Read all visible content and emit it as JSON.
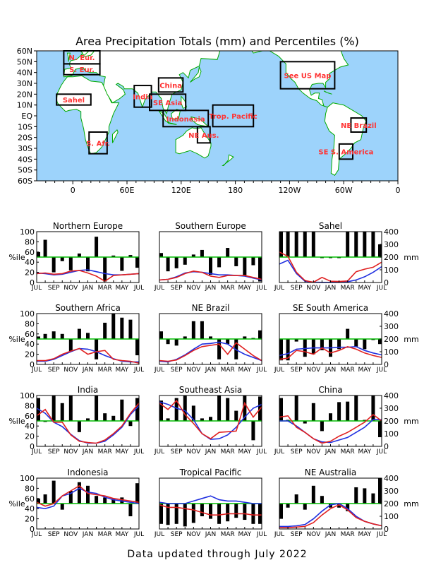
{
  "title": "Area Precipitation Totals (mm) and Percentiles (%)",
  "footer": "Data updated through July 2022",
  "colors": {
    "land": "#ffffff",
    "ocean": "#9dd3fb",
    "coast": "#00aa00",
    "box": "#000000",
    "region_label": "#ff3333",
    "percentile_bar": "#000000",
    "mm_line": "#e02020",
    "normal_line": "#2030e0",
    "fifty_line": "#00bb00"
  },
  "map": {
    "lat_labels": [
      "60N",
      "50N",
      "40N",
      "30N",
      "20N",
      "10N",
      "EQ",
      "10S",
      "20S",
      "30S",
      "40S",
      "50S",
      "60S"
    ],
    "lon_labels": [
      "0",
      "60E",
      "120E",
      "180",
      "120W",
      "60W",
      "0"
    ],
    "lon_values": [
      0,
      60,
      120,
      180,
      240,
      300,
      360
    ],
    "lon_range": [
      -40,
      360
    ],
    "lat_range": [
      -60,
      60
    ],
    "regions": [
      {
        "label": "N. Eur.",
        "lon": [
          -10,
          30
        ],
        "lat": [
          48,
          60
        ]
      },
      {
        "label": "S. Eur.",
        "lon": [
          -10,
          30
        ],
        "lat": [
          38,
          48
        ]
      },
      {
        "label": "Sahel",
        "lon": [
          -18,
          20
        ],
        "lat": [
          10,
          20
        ]
      },
      {
        "label": "S. Afr.",
        "lon": [
          18,
          38
        ],
        "lat": [
          -35,
          -15
        ]
      },
      {
        "label": "India",
        "lon": [
          68,
          87
        ],
        "lat": [
          8,
          28
        ]
      },
      {
        "label": "China",
        "lon": [
          95,
          122
        ],
        "lat": [
          22,
          35
        ]
      },
      {
        "label": "SE Asia",
        "lon": [
          85,
          125
        ],
        "lat": [
          5,
          20
        ]
      },
      {
        "label": "Indonesia",
        "lon": [
          100,
          150
        ],
        "lat": [
          -10,
          5
        ]
      },
      {
        "label": "Trop. Pacific",
        "lon": [
          155,
          200
        ],
        "lat": [
          -10,
          10
        ]
      },
      {
        "label": "NE Aus.",
        "lon": [
          138,
          152
        ],
        "lat": [
          -25,
          -10
        ]
      },
      {
        "label": "See US Map",
        "lon": [
          230,
          290
        ],
        "lat": [
          25,
          50
        ]
      },
      {
        "label": "NE Brazil",
        "lon": [
          308,
          325
        ],
        "lat": [
          -15,
          -2
        ]
      },
      {
        "label": "SE S. America",
        "lon": [
          295,
          310
        ],
        "lat": [
          -40,
          -26
        ]
      }
    ]
  },
  "panel_common": {
    "month_labels": [
      "JUL",
      "SEP",
      "NOV",
      "JAN",
      "MAR",
      "MAY",
      "JUL"
    ],
    "left_ticks": [
      "0",
      "20",
      "40",
      "60",
      "80",
      "100"
    ],
    "right_ticks": [
      "0",
      "100",
      "200",
      "300",
      "400"
    ],
    "left_unit": "%ile",
    "right_unit": "mm"
  },
  "chart_data": [
    {
      "type": "bar",
      "title": "Northern Europe",
      "ylabel_left": "%ile",
      "ylabel_right": "mm",
      "ylim": [
        0,
        100
      ],
      "y2lim": [
        0,
        400
      ],
      "percentiles": [
        60,
        84,
        20,
        42,
        24,
        57,
        22,
        90,
        2,
        53,
        23,
        54,
        29
      ],
      "precip_mm": [
        70,
        75,
        65,
        70,
        90,
        95,
        75,
        50,
        10,
        55,
        60,
        65,
        70
      ],
      "normal_mm": [
        75,
        70,
        60,
        65,
        80,
        95,
        100,
        85,
        70,
        60,
        60,
        65,
        70
      ]
    },
    {
      "type": "bar",
      "title": "Southern Europe",
      "ylabel_left": "%ile",
      "ylabel_right": "mm",
      "ylim": [
        0,
        100
      ],
      "y2lim": [
        0,
        400
      ],
      "percentiles": [
        58,
        22,
        28,
        35,
        55,
        64,
        15,
        30,
        68,
        32,
        14,
        34,
        2
      ],
      "precip_mm": [
        20,
        25,
        40,
        70,
        90,
        80,
        50,
        40,
        55,
        55,
        55,
        40,
        25
      ],
      "normal_mm": [
        20,
        25,
        45,
        75,
        85,
        80,
        70,
        60,
        60,
        55,
        50,
        35,
        20
      ]
    },
    {
      "type": "bar",
      "title": "Sahel",
      "ylabel_left": "%ile",
      "ylabel_right": "mm",
      "ylim": [
        0,
        100
      ],
      "y2lim": [
        0,
        400
      ],
      "percentiles": [
        100,
        100,
        100,
        100,
        100,
        48,
        48,
        48,
        100,
        100,
        100,
        100,
        75
      ],
      "precip_mm": [
        240,
        205,
        80,
        15,
        2,
        40,
        10,
        8,
        12,
        85,
        105,
        120,
        160
      ],
      "normal_mm": [
        145,
        175,
        70,
        10,
        2,
        1,
        1,
        1,
        6,
        20,
        45,
        80,
        125
      ]
    },
    {
      "type": "bar",
      "title": "Southern Africa",
      "ylabel_left": "%ile",
      "ylabel_right": "mm",
      "ylim": [
        0,
        100
      ],
      "y2lim": [
        0,
        400
      ],
      "percentiles": [
        55,
        60,
        65,
        60,
        25,
        70,
        62,
        10,
        82,
        100,
        92,
        88,
        18
      ],
      "precip_mm": [
        30,
        30,
        45,
        80,
        105,
        125,
        80,
        100,
        110,
        40,
        30,
        25,
        10
      ],
      "normal_mm": [
        25,
        25,
        40,
        70,
        100,
        125,
        120,
        100,
        70,
        45,
        25,
        20,
        20
      ]
    },
    {
      "type": "bar",
      "title": "NE Brazil",
      "ylabel_left": "%ile",
      "ylabel_right": "mm",
      "ylim": [
        0,
        100
      ],
      "y2lim": [
        0,
        400
      ],
      "percentiles": [
        65,
        40,
        37,
        55,
        85,
        85,
        55,
        10,
        40,
        10,
        55,
        52,
        67
      ],
      "precip_mm": [
        30,
        25,
        35,
        70,
        110,
        140,
        150,
        160,
        80,
        170,
        120,
        70,
        30
      ],
      "normal_mm": [
        25,
        20,
        40,
        75,
        120,
        160,
        165,
        175,
        160,
        115,
        80,
        55,
        30
      ]
    },
    {
      "type": "bar",
      "title": "SE South America",
      "ylabel_left": "%ile",
      "ylabel_right": "mm",
      "ylim": [
        0,
        100
      ],
      "y2lim": [
        0,
        400
      ],
      "percentiles": [
        8,
        8,
        45,
        15,
        20,
        28,
        15,
        30,
        70,
        35,
        30,
        48,
        40
      ],
      "precip_mm": [
        40,
        50,
        110,
        100,
        80,
        130,
        90,
        110,
        140,
        120,
        90,
        70,
        55
      ],
      "normal_mm": [
        70,
        85,
        120,
        125,
        130,
        130,
        130,
        135,
        135,
        140,
        110,
        90,
        75
      ]
    },
    {
      "type": "bar",
      "title": "India",
      "ylabel_left": "%ile",
      "ylabel_right": "mm",
      "ylim": [
        0,
        100
      ],
      "y2lim": [
        0,
        400
      ],
      "percentiles": [
        95,
        48,
        100,
        85,
        100,
        28,
        55,
        100,
        65,
        60,
        92,
        40,
        95
      ],
      "precip_mm": [
        240,
        290,
        190,
        190,
        90,
        40,
        30,
        25,
        50,
        100,
        160,
        260,
        340
      ],
      "normal_mm": [
        300,
        260,
        190,
        155,
        95,
        45,
        25,
        25,
        40,
        90,
        150,
        250,
        320
      ]
    },
    {
      "type": "bar",
      "title": "Southeast Asia",
      "ylabel_left": "%ile",
      "ylabel_right": "mm",
      "ylim": [
        0,
        100
      ],
      "y2lim": [
        0,
        400
      ],
      "percentiles": [
        90,
        55,
        95,
        100,
        80,
        55,
        58,
        100,
        95,
        70,
        100,
        12,
        98
      ],
      "precip_mm": [
        340,
        290,
        360,
        250,
        180,
        100,
        60,
        110,
        115,
        120,
        340,
        230,
        310
      ],
      "normal_mm": [
        350,
        330,
        300,
        280,
        210,
        100,
        55,
        60,
        90,
        150,
        230,
        300,
        330
      ]
    },
    {
      "type": "bar",
      "title": "China",
      "ylabel_left": "%ile",
      "ylabel_right": "mm",
      "ylim": [
        0,
        100
      ],
      "y2lim": [
        0,
        400
      ],
      "percentiles": [
        95,
        52,
        100,
        45,
        85,
        30,
        65,
        87,
        88,
        100,
        52,
        100,
        18
      ],
      "precip_mm": [
        230,
        240,
        150,
        110,
        60,
        25,
        40,
        80,
        110,
        150,
        190,
        250,
        200
      ],
      "normal_mm": [
        200,
        200,
        160,
        110,
        60,
        35,
        30,
        50,
        70,
        110,
        150,
        210,
        210
      ]
    },
    {
      "type": "bar",
      "title": "Indonesia",
      "ylabel_left": "%ile",
      "ylabel_right": "mm",
      "ylim": [
        0,
        100
      ],
      "y2lim": [
        0,
        400
      ],
      "percentiles": [
        60,
        68,
        95,
        38,
        75,
        92,
        85,
        65,
        62,
        60,
        62,
        25,
        90
      ],
      "precip_mm": [
        210,
        180,
        200,
        260,
        300,
        340,
        280,
        270,
        260,
        240,
        230,
        220,
        210
      ],
      "normal_mm": [
        170,
        160,
        180,
        260,
        280,
        320,
        290,
        280,
        250,
        230,
        220,
        210,
        200
      ]
    },
    {
      "type": "bar",
      "title": "Tropical Pacific",
      "ylabel_left": "%ile",
      "ylabel_right": "mm",
      "ylim": [
        0,
        100
      ],
      "y2lim": [
        0,
        400
      ],
      "percentiles": [
        10,
        8,
        10,
        5,
        12,
        25,
        20,
        10,
        15,
        22,
        18,
        10,
        10
      ],
      "precip_mm": [
        190,
        170,
        170,
        160,
        150,
        130,
        110,
        110,
        120,
        120,
        120,
        110,
        110
      ],
      "normal_mm": [
        210,
        200,
        200,
        200,
        220,
        240,
        260,
        230,
        220,
        220,
        210,
        200,
        200
      ]
    },
    {
      "type": "bar",
      "title": "NE Australia",
      "ylabel_left": "%ile",
      "ylabel_right": "mm",
      "ylim": [
        0,
        100
      ],
      "y2lim": [
        0,
        400
      ],
      "percentiles": [
        20,
        42,
        68,
        38,
        85,
        65,
        42,
        42,
        35,
        82,
        80,
        70,
        100
      ],
      "precip_mm": [
        10,
        10,
        15,
        20,
        50,
        110,
        160,
        190,
        150,
        90,
        60,
        40,
        25
      ],
      "normal_mm": [
        20,
        20,
        25,
        35,
        80,
        140,
        190,
        200,
        160,
        100,
        60,
        40,
        25
      ]
    }
  ]
}
